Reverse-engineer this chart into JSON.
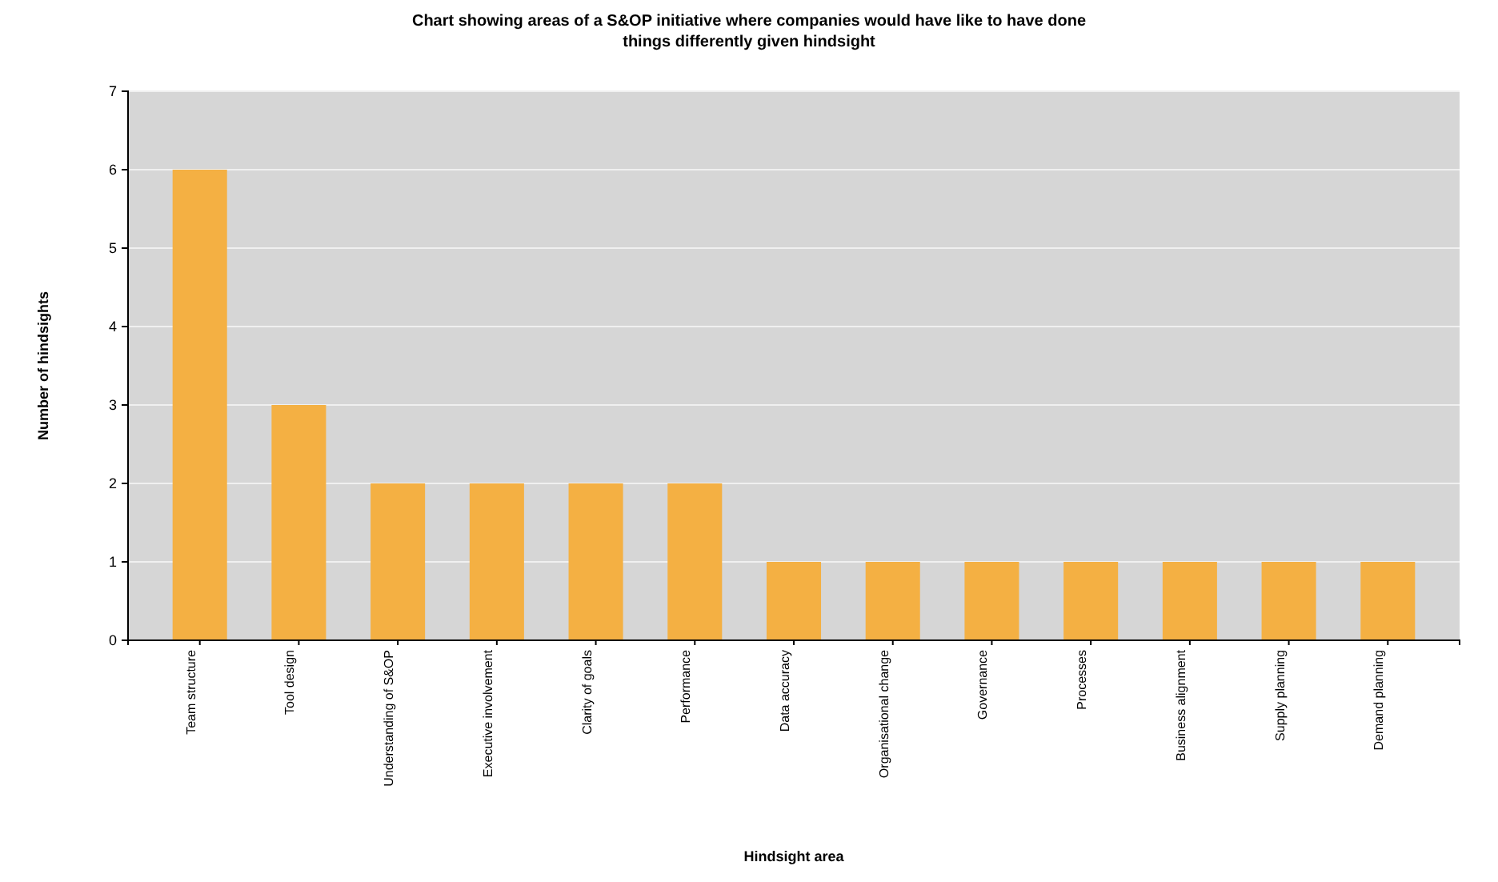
{
  "chart_data": {
    "type": "bar",
    "title": "Chart showing areas of a S&OP initiative where companies would have like to have done things differently given hindsight",
    "xlabel": "Hindsight area",
    "ylabel": "Number of hindsights",
    "categories": [
      "Team structure",
      "Tool design",
      "Understanding of S&OP",
      "Executive involvement",
      "Clarity of goals",
      "Performance",
      "Data accuracy",
      "Organisational change",
      "Governance",
      "Processes",
      "Business alignment",
      "Supply planning",
      "Demand planning"
    ],
    "values": [
      6,
      3,
      2,
      2,
      2,
      2,
      1,
      1,
      1,
      1,
      1,
      1,
      1
    ],
    "color": "#f4b043",
    "ylim": [
      0,
      7
    ],
    "yticks": [
      0,
      1,
      2,
      3,
      4,
      5,
      6,
      7
    ],
    "grid": "y"
  }
}
